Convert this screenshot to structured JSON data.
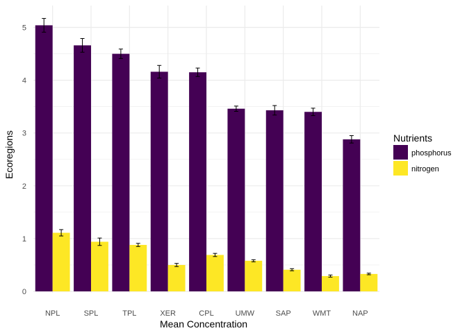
{
  "chart_data": {
    "type": "bar",
    "xlabel": "Mean Concentration",
    "ylabel": "Ecoregions",
    "categories": [
      "NPL",
      "SPL",
      "TPL",
      "XER",
      "CPL",
      "UMW",
      "SAP",
      "WMT",
      "NAP"
    ],
    "series": [
      {
        "name": "phosphorus",
        "color": "#440154",
        "values": [
          5.04,
          4.66,
          4.5,
          4.16,
          4.15,
          3.46,
          3.43,
          3.4,
          2.88
        ],
        "err": [
          0.13,
          0.13,
          0.09,
          0.12,
          0.08,
          0.05,
          0.09,
          0.07,
          0.07
        ]
      },
      {
        "name": "nitrogen",
        "color": "#FDE725",
        "values": [
          1.11,
          0.94,
          0.88,
          0.5,
          0.69,
          0.58,
          0.41,
          0.29,
          0.33
        ],
        "err": [
          0.06,
          0.07,
          0.03,
          0.03,
          0.03,
          0.02,
          0.02,
          0.02,
          0.015
        ]
      }
    ],
    "ylim": [
      0,
      5.3
    ],
    "yticks": [
      0,
      1,
      2,
      3,
      4,
      5
    ],
    "grid": true,
    "error_bars": true,
    "legend": {
      "title": "Nutrients",
      "position": "right"
    }
  }
}
